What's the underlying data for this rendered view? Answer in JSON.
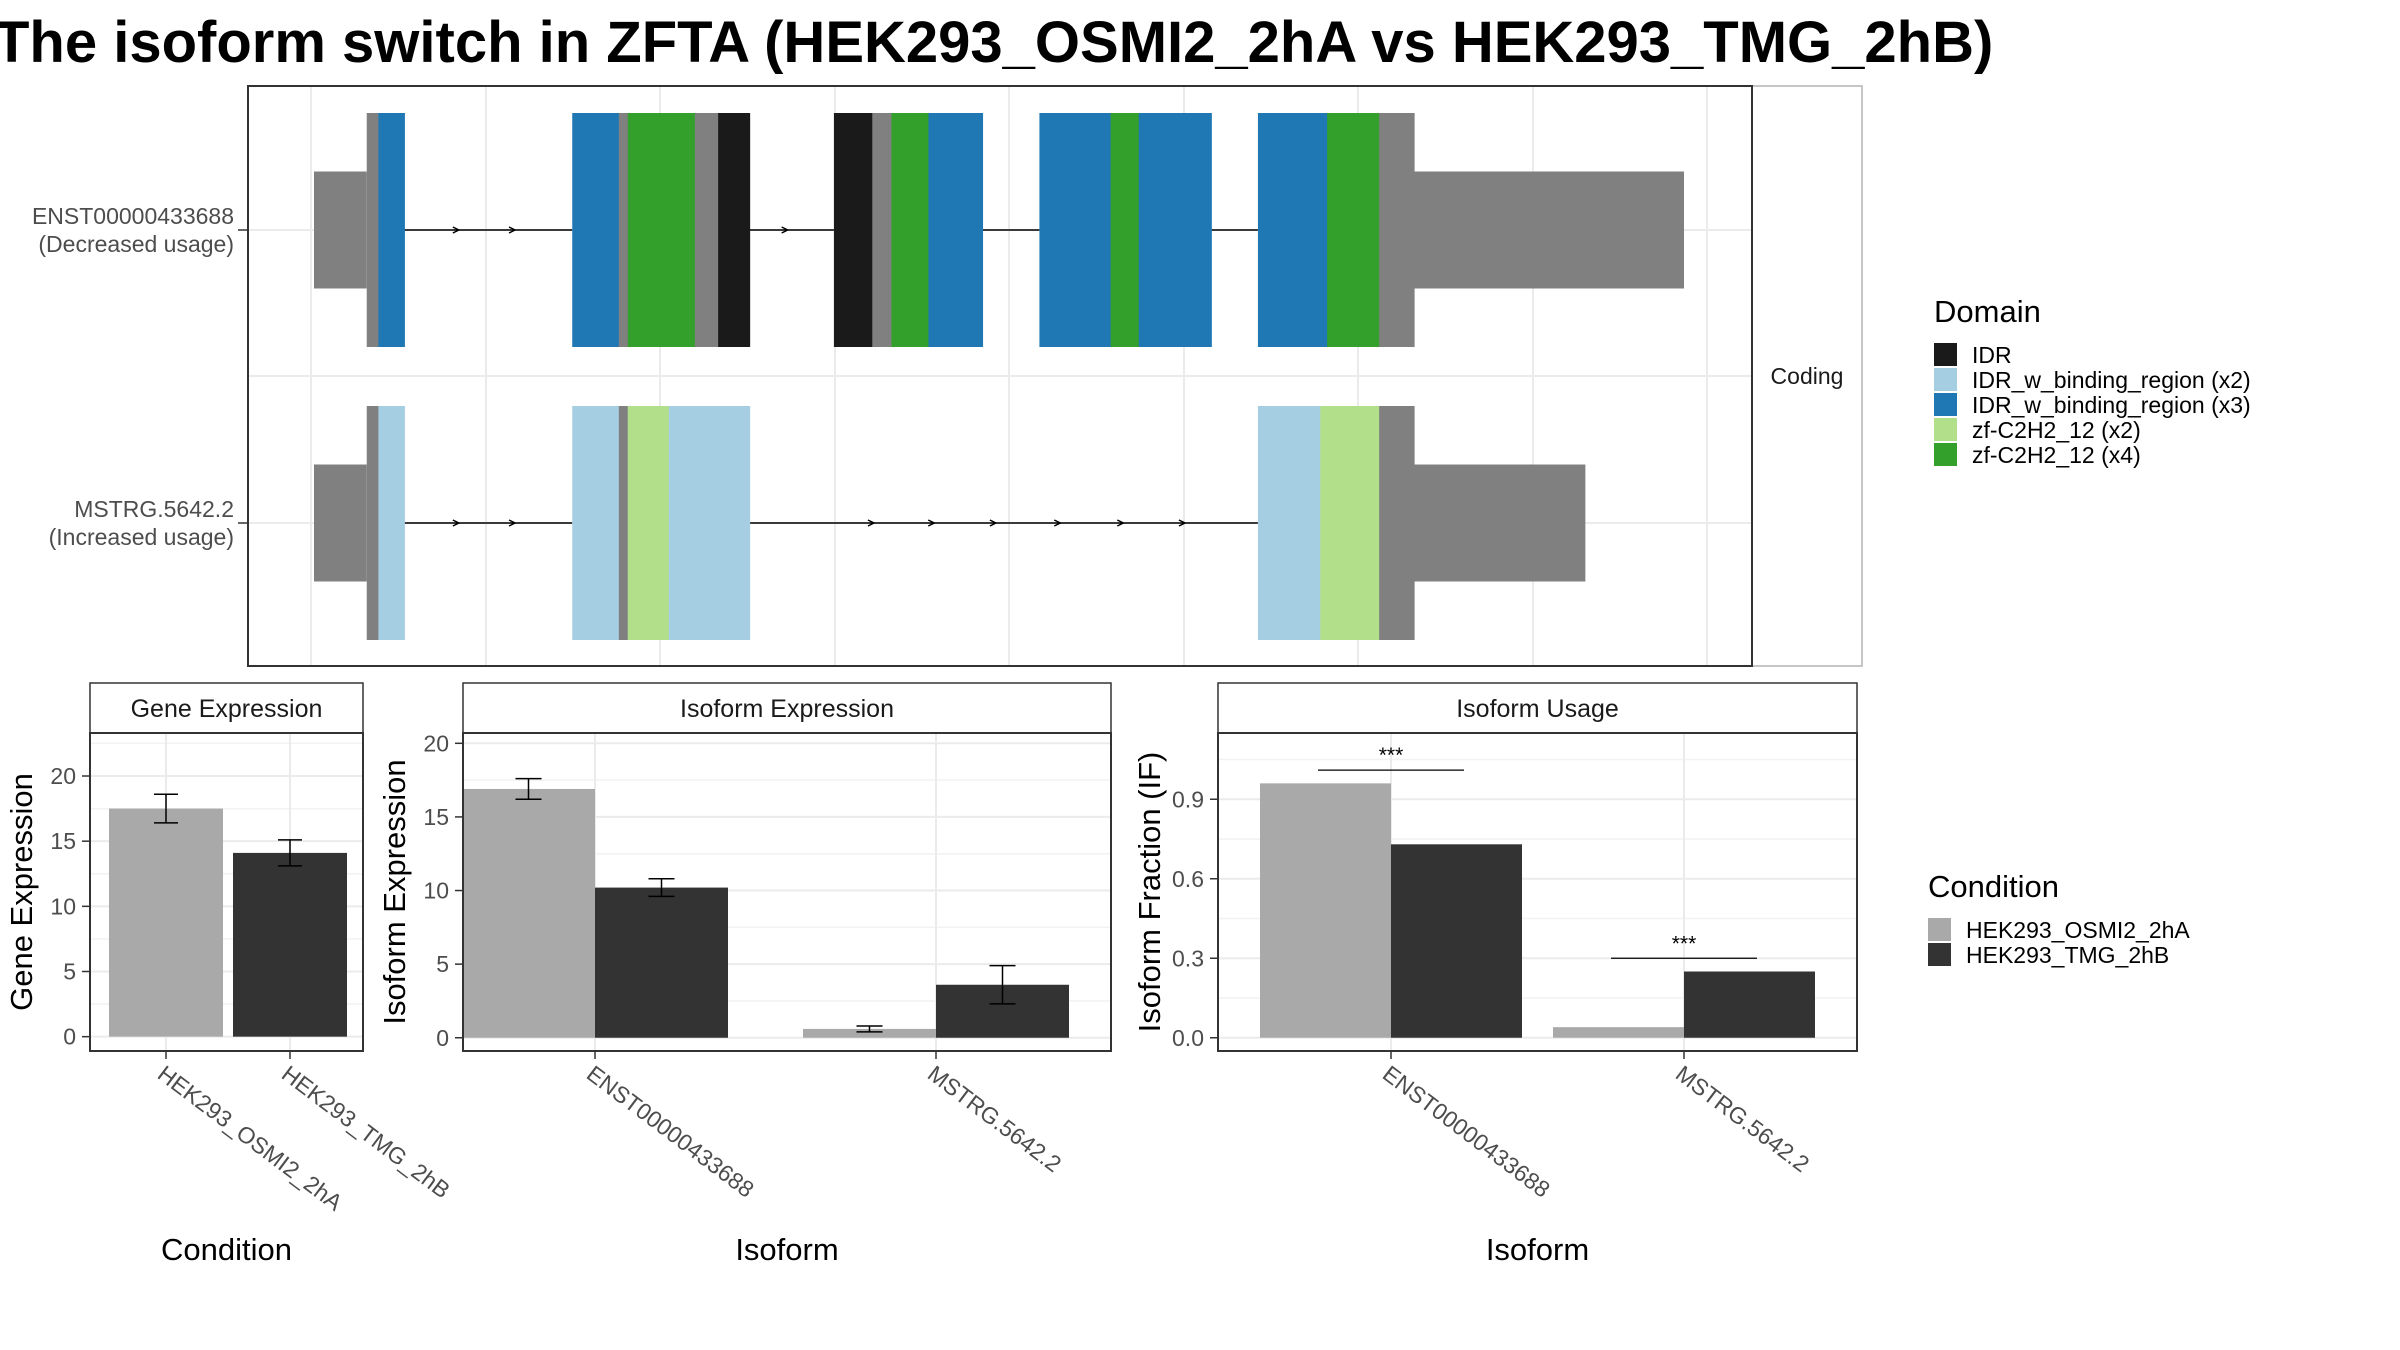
{
  "title": "The isoform switch in ZFTA (HEK293_OSMI2_2hA vs HEK293_TMG_2hB)",
  "colors": {
    "IDR": "#1a1a1a",
    "IDR_w_binding_region (x2)": "#a6cee3",
    "IDR_w_binding_region (x3)": "#1f78b4",
    "zf-C2H2_12 (x2)": "#b2df8a",
    "zf-C2H2_12 (x4)": "#33a02c",
    "noncoding": "#808080",
    "cond1": "#a9a9a9",
    "cond2": "#333333"
  },
  "chart_data": [
    {
      "type": "gene-structure",
      "strip_label": "Coding",
      "transcripts": [
        {
          "id": "ENST00000433688",
          "label_line1": "ENST00000433688",
          "label_line2": "(Decreased usage)",
          "exons": [
            {
              "start": 0.0,
              "end": 0.0385,
              "kind": "utr"
            },
            {
              "start": 0.0385,
              "end": 0.066,
              "kind": "cds",
              "segments": [
                [
                  0.0385,
                  0.047,
                  "noncoding"
                ],
                [
                  0.047,
                  0.066,
                  "IDR_w_binding_region (x3)"
                ]
              ]
            },
            {
              "start": 0.1885,
              "end": 0.318,
              "kind": "cds",
              "segments": [
                [
                  0.1885,
                  0.2225,
                  "IDR_w_binding_region (x3)"
                ],
                [
                  0.2225,
                  0.229,
                  "noncoding"
                ],
                [
                  0.229,
                  0.278,
                  "zf-C2H2_12 (x4)"
                ],
                [
                  0.278,
                  0.295,
                  "noncoding"
                ],
                [
                  0.295,
                  0.318,
                  "IDR"
                ]
              ]
            },
            {
              "start": 0.3795,
              "end": 0.488,
              "kind": "cds",
              "segments": [
                [
                  0.3795,
                  0.4075,
                  "IDR"
                ],
                [
                  0.4075,
                  0.4215,
                  "noncoding"
                ],
                [
                  0.4215,
                  0.4485,
                  "zf-C2H2_12 (x4)"
                ],
                [
                  0.4485,
                  0.488,
                  "IDR_w_binding_region (x3)"
                ]
              ]
            },
            {
              "start": 0.5295,
              "end": 0.655,
              "kind": "cds",
              "segments": [
                [
                  0.5295,
                  0.5815,
                  "IDR_w_binding_region (x3)"
                ],
                [
                  0.5815,
                  0.602,
                  "zf-C2H2_12 (x4)"
                ],
                [
                  0.602,
                  0.655,
                  "IDR_w_binding_region (x3)"
                ]
              ]
            },
            {
              "start": 0.689,
              "end": 0.7775,
              "kind": "cds",
              "segments": [
                [
                  0.689,
                  0.7395,
                  "IDR_w_binding_region (x3)"
                ],
                [
                  0.7395,
                  0.7775,
                  "zf-C2H2_12 (x4)"
                ]
              ]
            },
            {
              "start": 0.7775,
              "end": 0.803,
              "kind": "cds",
              "segments": [
                [
                  0.7775,
                  0.803,
                  "noncoding"
                ]
              ]
            },
            {
              "start": 0.803,
              "end": 1.0,
              "kind": "utr"
            }
          ],
          "arrows_at": [
            0.105,
            0.146,
            0.345
          ]
        },
        {
          "id": "MSTRG.5642.2",
          "label_line1": "MSTRG.5642.2",
          "label_line2": "(Increased usage)",
          "exons": [
            {
              "start": 0.0,
              "end": 0.0385,
              "kind": "utr"
            },
            {
              "start": 0.0385,
              "end": 0.066,
              "kind": "cds",
              "segments": [
                [
                  0.0385,
                  0.047,
                  "noncoding"
                ],
                [
                  0.047,
                  0.066,
                  "IDR_w_binding_region (x2)"
                ]
              ]
            },
            {
              "start": 0.1885,
              "end": 0.318,
              "kind": "cds",
              "segments": [
                [
                  0.1885,
                  0.2225,
                  "IDR_w_binding_region (x2)"
                ],
                [
                  0.2225,
                  0.229,
                  "noncoding"
                ],
                [
                  0.229,
                  0.259,
                  "zf-C2H2_12 (x2)"
                ],
                [
                  0.259,
                  0.318,
                  "IDR_w_binding_region (x2)"
                ]
              ]
            },
            {
              "start": 0.689,
              "end": 0.7775,
              "kind": "cds",
              "segments": [
                [
                  0.689,
                  0.7345,
                  "IDR_w_binding_region (x2)"
                ],
                [
                  0.7345,
                  0.7775,
                  "zf-C2H2_12 (x2)"
                ]
              ]
            },
            {
              "start": 0.7775,
              "end": 0.803,
              "kind": "cds",
              "segments": [
                [
                  0.7775,
                  0.803,
                  "noncoding"
                ]
              ]
            },
            {
              "start": 0.803,
              "end": 0.928,
              "kind": "utr"
            }
          ],
          "arrows_at": [
            0.105,
            0.146,
            0.408,
            0.452,
            0.497,
            0.544,
            0.59,
            0.635
          ]
        }
      ]
    },
    {
      "type": "bar",
      "panel": "Gene Expression",
      "xlabel": "Condition",
      "ylabel": "Gene Expression",
      "categories": [
        "HEK293_OSMI2_2hA",
        "HEK293_TMG_2hB"
      ],
      "series": [
        {
          "name": "HEK293_OSMI2_2hA",
          "values": [
            17.5,
            null
          ],
          "err": [
            1.1,
            null
          ]
        },
        {
          "name": "HEK293_TMG_2hB",
          "values": [
            null,
            14.1
          ],
          "err": [
            null,
            1.0
          ]
        }
      ],
      "yticks": [
        0,
        5,
        10,
        15,
        20
      ],
      "ylim": [
        -1.1,
        23.3
      ]
    },
    {
      "type": "bar",
      "panel": "Isoform Expression",
      "xlabel": "Isoform",
      "ylabel": "Isoform Expression",
      "categories": [
        "ENST00000433688",
        "MSTRG.5642.2"
      ],
      "series": [
        {
          "name": "HEK293_OSMI2_2hA",
          "values": [
            16.9,
            0.6
          ],
          "err": [
            0.7,
            0.2
          ]
        },
        {
          "name": "HEK293_TMG_2hB",
          "values": [
            10.2,
            3.6
          ],
          "err": [
            0.6,
            1.3
          ]
        }
      ],
      "yticks": [
        0,
        5,
        10,
        15,
        20
      ],
      "ylim": [
        -0.9,
        20.7
      ]
    },
    {
      "type": "bar",
      "panel": "Isoform Usage",
      "xlabel": "Isoform",
      "ylabel": "Isoform Fraction (IF)",
      "categories": [
        "ENST00000433688",
        "MSTRG.5642.2"
      ],
      "series": [
        {
          "name": "HEK293_OSMI2_2hA",
          "values": [
            0.96,
            0.04
          ]
        },
        {
          "name": "HEK293_TMG_2hB",
          "values": [
            0.73,
            0.25
          ]
        }
      ],
      "significance": [
        {
          "category": "ENST00000433688",
          "label": "***",
          "y": 1.01
        },
        {
          "category": "MSTRG.5642.2",
          "label": "***",
          "y": 0.3
        }
      ],
      "yticks": [
        0.0,
        0.3,
        0.6,
        0.9
      ],
      "ylim": [
        -0.05,
        1.15
      ]
    }
  ],
  "legend_domain": {
    "title": "Domain",
    "items": [
      "IDR",
      "IDR_w_binding_region (x2)",
      "IDR_w_binding_region (x3)",
      "zf-C2H2_12 (x2)",
      "zf-C2H2_12 (x4)"
    ]
  },
  "legend_condition": {
    "title": "Condition",
    "items": [
      "HEK293_OSMI2_2hA",
      "HEK293_TMG_2hB"
    ]
  }
}
